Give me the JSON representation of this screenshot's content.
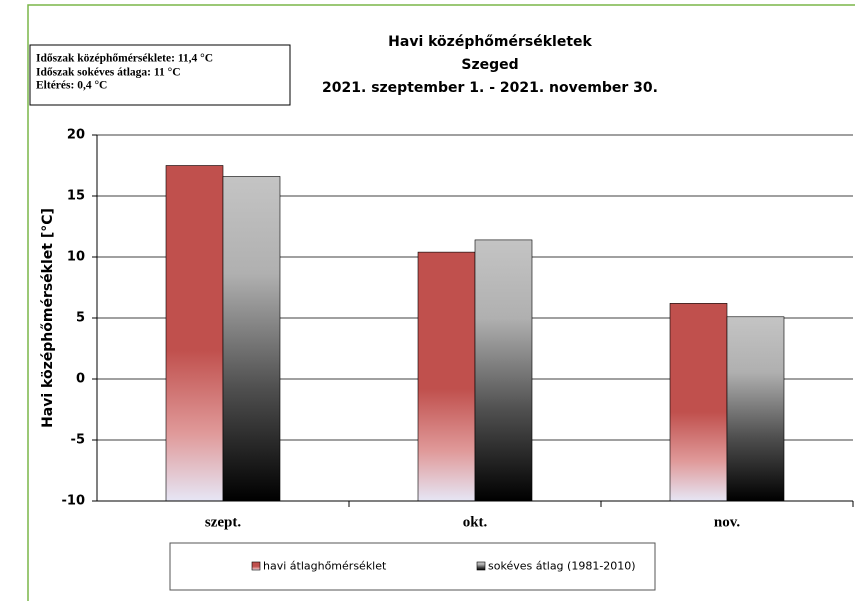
{
  "chart_data": {
    "type": "bar",
    "title": "Havi középhőmérsékletek",
    "subtitle": "Szeged",
    "period": "2021. szeptember 1. - 2021. november 30.",
    "annotations": [
      "Időszak középhőmérséklete: 11,4 °C",
      "Időszak sokéves átlaga: 11 °C",
      "Eltérés: 0,4 °C"
    ],
    "y_label": "Havi középhőmérséklet  [°C]",
    "categories": [
      "szept.",
      "okt.",
      "nov."
    ],
    "series": [
      {
        "name": "havi átlaghőmérséklet",
        "color": "#c0504d",
        "values": [
          17.5,
          10.4,
          6.2
        ]
      },
      {
        "name": "sokéves átlag (1981-2010)",
        "color": "#a6a6a6",
        "values": [
          16.6,
          11.4,
          5.1
        ]
      }
    ],
    "ylim": [
      -10,
      20
    ],
    "yticks": [
      -10,
      -5,
      0,
      5,
      10,
      15,
      20
    ],
    "grid": true
  }
}
